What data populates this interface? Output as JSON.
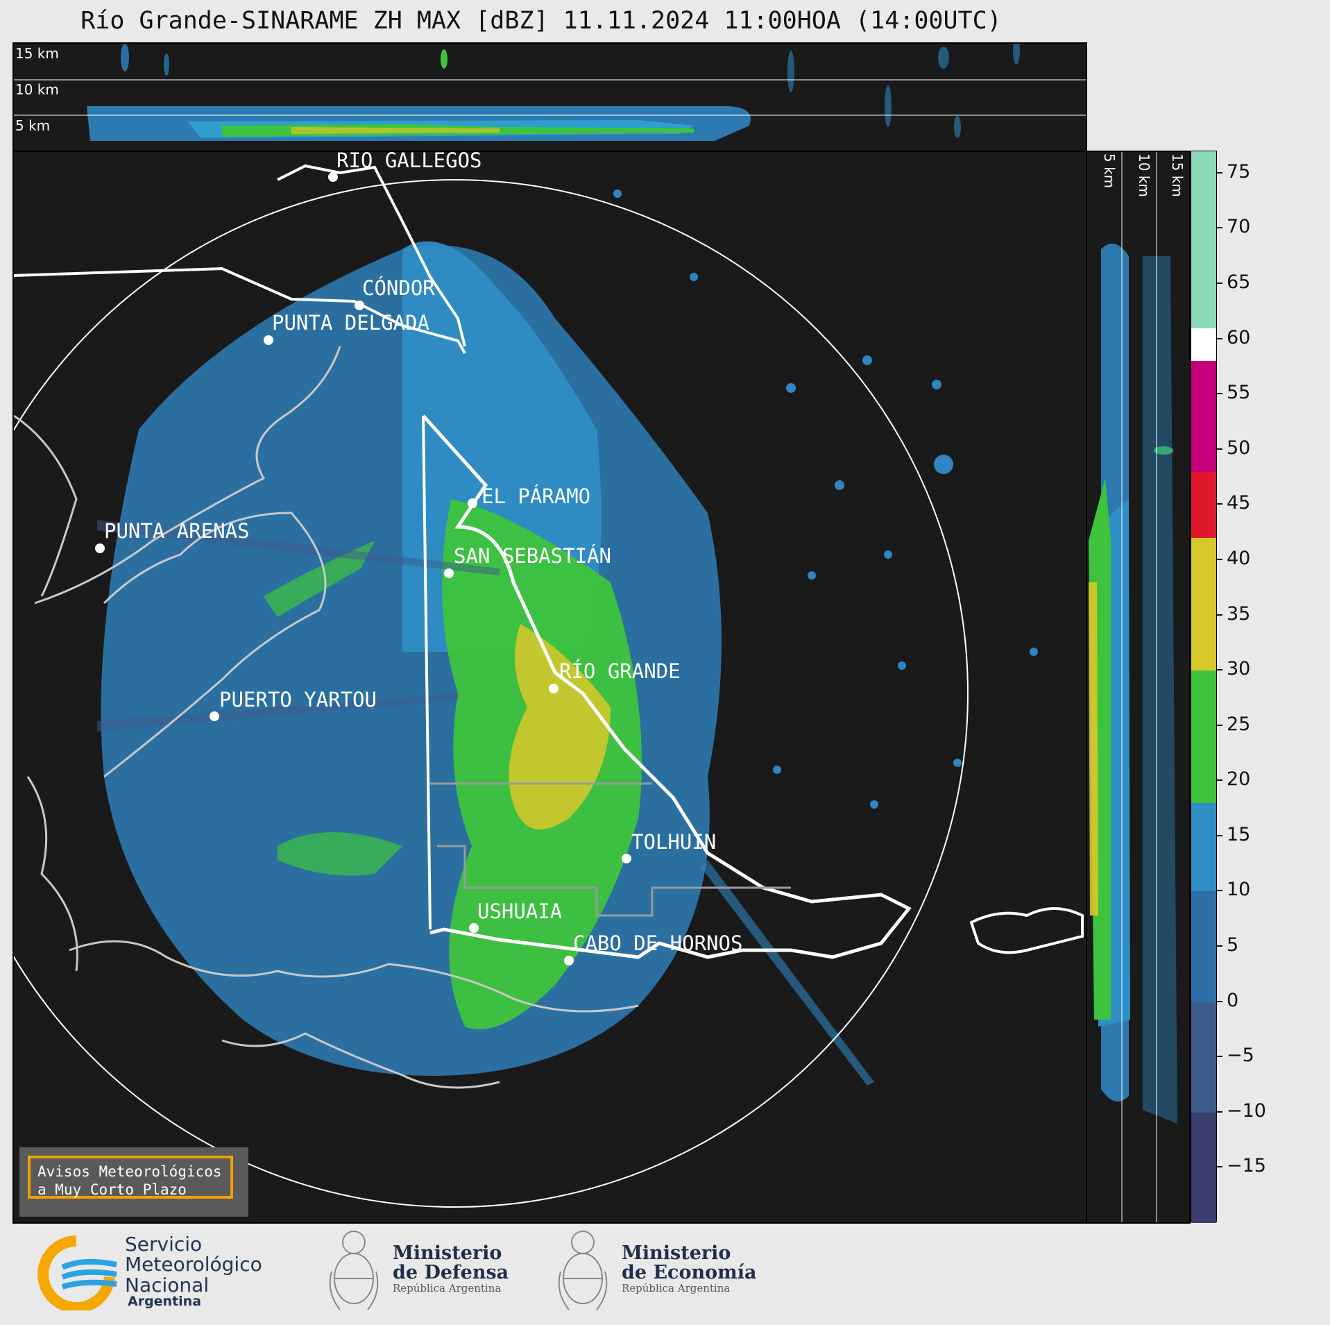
{
  "title": "Río Grande-SINARAME ZH MAX [dBZ] 11.11.2024 11:00HOA (14:00UTC)",
  "top_panel": {
    "altitude_labels": [
      "15 km",
      "10 km",
      "5 km"
    ]
  },
  "side_panel": {
    "altitude_labels": [
      "5 km",
      "10 km",
      "15 km"
    ]
  },
  "cities": [
    {
      "name": "RÍO GALLEGOS"
    },
    {
      "name": "CÓNDOR"
    },
    {
      "name": "PUNTA DELGADA"
    },
    {
      "name": "EL PÁRAMO"
    },
    {
      "name": "PUNTA ARENAS"
    },
    {
      "name": "SAN SEBASTIÁN"
    },
    {
      "name": "RÍO GRANDE"
    },
    {
      "name": "PUERTO YARTOU"
    },
    {
      "name": "TOLHUIN"
    },
    {
      "name": "USHUAIA"
    },
    {
      "name": "CABO DE HORNOS"
    }
  ],
  "alert_box": {
    "line1": "Avisos Meteorológicos",
    "line2": "a Muy Corto Plazo"
  },
  "colorbar": {
    "unit": "dBZ",
    "min": -20,
    "max": 77,
    "tick_labels": [
      "75",
      "70",
      "65",
      "60",
      "55",
      "50",
      "45",
      "40",
      "35",
      "30",
      "25",
      "20",
      "15",
      "10",
      "5",
      "0",
      "−5",
      "−10",
      "−15"
    ],
    "tick_values": [
      75,
      70,
      65,
      60,
      55,
      50,
      45,
      40,
      35,
      30,
      25,
      20,
      15,
      10,
      5,
      0,
      -5,
      -10,
      -15
    ],
    "color_stops": [
      {
        "from": -20,
        "to": -10,
        "color": "#3a3d6e"
      },
      {
        "from": -10,
        "to": 0,
        "color": "#3d5c8c"
      },
      {
        "from": 0,
        "to": 10,
        "color": "#2f6fa8"
      },
      {
        "from": 10,
        "to": 18,
        "color": "#2f8fc7"
      },
      {
        "from": 18,
        "to": 30,
        "color": "#3ec43c"
      },
      {
        "from": 30,
        "to": 42,
        "color": "#d9c82a"
      },
      {
        "from": 42,
        "to": 48,
        "color": "#e0182e"
      },
      {
        "from": 48,
        "to": 58,
        "color": "#c4007a"
      },
      {
        "from": 58,
        "to": 61,
        "color": "#ffffff"
      },
      {
        "from": 61,
        "to": 77,
        "color": "#8ad9b7"
      }
    ]
  },
  "footer": {
    "smn_line1": "Servicio",
    "smn_line2": "Meteorológico",
    "smn_line3": "Nacional",
    "smn_line4": "Argentina",
    "defensa_line1": "Ministerio",
    "defensa_line2": "de Defensa",
    "defensa_line3": "República Argentina",
    "economia_line1": "Ministerio",
    "economia_line2": "de Economía",
    "economia_line3": "República Argentina"
  }
}
